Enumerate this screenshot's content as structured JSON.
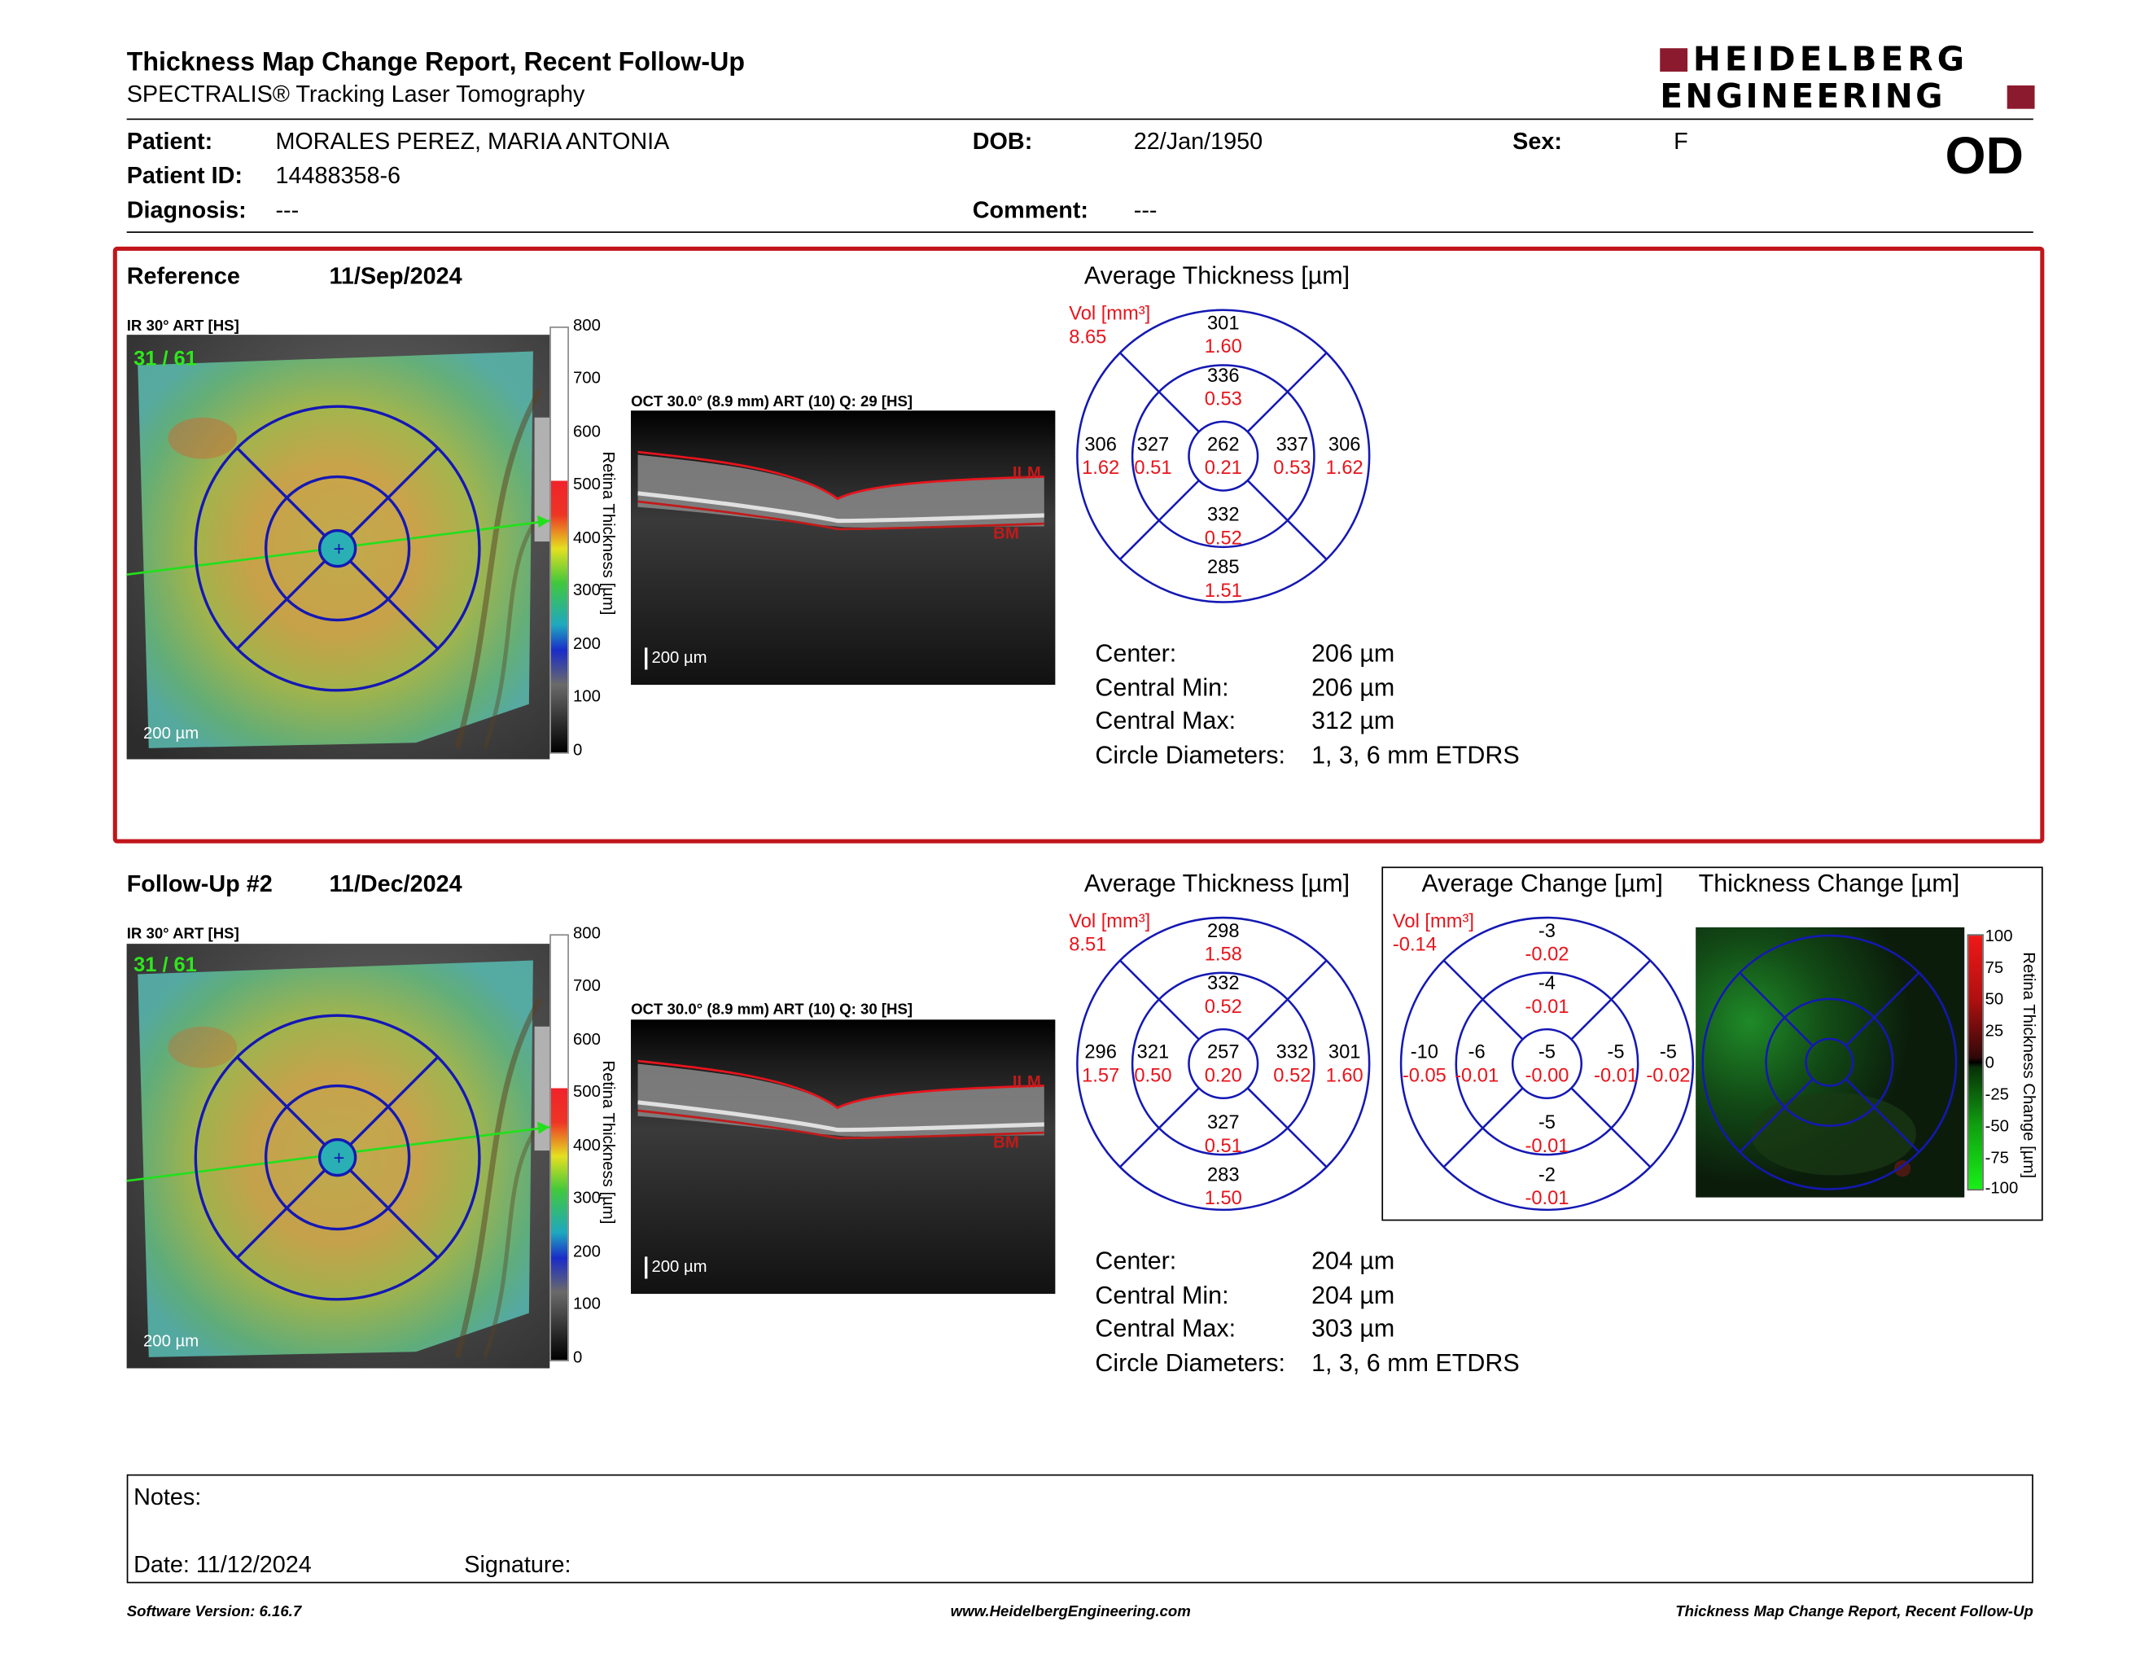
{
  "header": {
    "title": "Thickness Map Change Report, Recent Follow-Up",
    "subtitle": "SPECTRALIS® Tracking Laser Tomography",
    "brand_line1": "HEIDELBERG",
    "brand_line2": "ENGINEERING",
    "eye": "OD"
  },
  "patient": {
    "patient_label": "Patient:",
    "patient_value": "MORALES PEREZ, MARIA ANTONIA",
    "dob_label": "DOB:",
    "dob_value": "22/Jan/1950",
    "sex_label": "Sex:",
    "sex_value": "F",
    "id_label": "Patient ID:",
    "id_value": "14488358-6",
    "diagnosis_label": "Diagnosis:",
    "diagnosis_value": "---",
    "comment_label": "Comment:",
    "comment_value": "---"
  },
  "colorbar_ticks": [
    "800",
    "700",
    "600",
    "500",
    "400",
    "300",
    "200",
    "100",
    "0"
  ],
  "colorbar_title": "Retina Thickness [µm]",
  "reference": {
    "label": "Reference",
    "date": "11/Sep/2024",
    "ir_label": "IR 30° ART [HS]",
    "slice": "31 / 61",
    "scale": "200 µm",
    "oct_label": "OCT 30.0° (8.9 mm) ART (10) Q: 29 [HS]",
    "oct_scale": "200 µm",
    "ilm": "ILM",
    "bm": "BM",
    "avg_heading": "Average Thickness [µm]",
    "vol_label": "Vol [mm³]",
    "vol_value": "8.65",
    "grid": {
      "outer_sup": [
        "301",
        "1.60"
      ],
      "inner_sup": [
        "336",
        "0.53"
      ],
      "outer_temp": [
        "306",
        "1.62"
      ],
      "inner_temp": [
        "327",
        "0.51"
      ],
      "center": [
        "262",
        "0.21"
      ],
      "inner_nas": [
        "337",
        "0.53"
      ],
      "outer_nas": [
        "306",
        "1.62"
      ],
      "inner_inf": [
        "332",
        "0.52"
      ],
      "outer_inf": [
        "285",
        "1.51"
      ]
    },
    "stats": {
      "center_label": "Center:",
      "center_value": "206 µm",
      "min_label": "Central Min:",
      "min_value": "206 µm",
      "max_label": "Central Max:",
      "max_value": "312 µm",
      "diam_label": "Circle Diameters:",
      "diam_value": "1, 3, 6 mm ETDRS"
    }
  },
  "followup": {
    "label": "Follow-Up #2",
    "date": "11/Dec/2024",
    "ir_label": "IR 30° ART [HS]",
    "slice": "31 / 61",
    "scale": "200 µm",
    "oct_label": "OCT 30.0° (8.9 mm) ART (10) Q: 30 [HS]",
    "oct_scale": "200 µm",
    "ilm": "ILM",
    "bm": "BM",
    "avg_heading": "Average Thickness [µm]",
    "vol_label": "Vol [mm³]",
    "vol_value": "8.51",
    "grid": {
      "outer_sup": [
        "298",
        "1.58"
      ],
      "inner_sup": [
        "332",
        "0.52"
      ],
      "outer_temp": [
        "296",
        "1.57"
      ],
      "inner_temp": [
        "321",
        "0.50"
      ],
      "center": [
        "257",
        "0.20"
      ],
      "inner_nas": [
        "332",
        "0.52"
      ],
      "outer_nas": [
        "301",
        "1.60"
      ],
      "inner_inf": [
        "327",
        "0.51"
      ],
      "outer_inf": [
        "283",
        "1.50"
      ]
    },
    "change_heading": "Average Change [µm]",
    "change_vol_label": "Vol [mm³]",
    "change_vol_value": "-0.14",
    "change_grid": {
      "outer_sup": [
        "-3",
        "-0.02"
      ],
      "inner_sup": [
        "-4",
        "-0.01"
      ],
      "outer_temp": [
        "-10",
        "-0.05"
      ],
      "inner_temp": [
        "-6",
        "-0.01"
      ],
      "center": [
        "-5",
        "-0.00"
      ],
      "inner_nas": [
        "-5",
        "-0.01"
      ],
      "outer_nas": [
        "-5",
        "-0.02"
      ],
      "inner_inf": [
        "-5",
        "-0.01"
      ],
      "outer_inf": [
        "-2",
        "-0.01"
      ]
    },
    "thickness_change_heading": "Thickness Change [µm]",
    "change_bar_ticks": [
      "100",
      "75",
      "50",
      "25",
      "0",
      "-25",
      "-50",
      "-75",
      "-100"
    ],
    "change_bar_title": "Retina Thickness Change [µm]",
    "stats": {
      "center_label": "Center:",
      "center_value": "204 µm",
      "min_label": "Central Min:",
      "min_value": "204 µm",
      "max_label": "Central Max:",
      "max_value": "303 µm",
      "diam_label": "Circle Diameters:",
      "diam_value": "1, 3, 6 mm ETDRS"
    }
  },
  "notes": {
    "notes_label": "Notes:",
    "date_label": "Date: 11/12/2024",
    "signature_label": "Signature:"
  },
  "footer": {
    "software": "Software Version: 6.16.7",
    "website": "www.HeidelbergEngineering.com",
    "report": "Thickness Map Change Report, Recent Follow-Up"
  },
  "colors": {
    "accent_red": "#c0161b",
    "grid_blue": "#1a1aa0",
    "value_red": "#e8141c",
    "brand_red": "#8c1a2e"
  }
}
